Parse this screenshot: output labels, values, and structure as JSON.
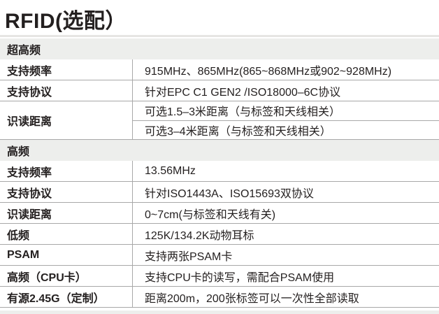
{
  "page": {
    "title": "RFID(选配）"
  },
  "colors": {
    "text": "#231f1f",
    "border": "#a8a8a8",
    "sectionbg": "#edeeec",
    "divider": "#e6e5e3",
    "pagebg": "#ffffff"
  },
  "table": {
    "sections": [
      {
        "header": "超高频",
        "rows": [
          {
            "label": "支持频率",
            "values": [
              "915MHz、865MHz(865~868MHz或902~928MHz)"
            ]
          },
          {
            "label": "支持协议",
            "values": [
              "针对EPC C1 GEN2 /ISO18000–6C协议"
            ]
          },
          {
            "label": "识读距离",
            "values": [
              "可选1.5–3米距离（与标签和天线相关）",
              "可选3–4米距离（与标签和天线相关）"
            ]
          }
        ]
      },
      {
        "header": "高频",
        "rows": [
          {
            "label": "支持频率",
            "values": [
              "13.56MHz"
            ]
          },
          {
            "label": "支持协议",
            "values": [
              "针对ISO1443A、ISO15693双协议"
            ]
          },
          {
            "label": "识读距离",
            "values": [
              "0~7cm(与标签和天线有关)"
            ]
          },
          {
            "label": "低频",
            "values": [
              "125K/134.2K动物耳标"
            ]
          },
          {
            "label": "PSAM",
            "values": [
              "支持两张PSAM卡"
            ]
          },
          {
            "label": "高频（CPU卡）",
            "values": [
              "支持CPU卡的读写，需配合PSAM使用"
            ]
          },
          {
            "label": "有源2.45G（定制）",
            "values": [
              "距离200m，200张标签可以一次性全部读取"
            ]
          }
        ]
      }
    ]
  }
}
